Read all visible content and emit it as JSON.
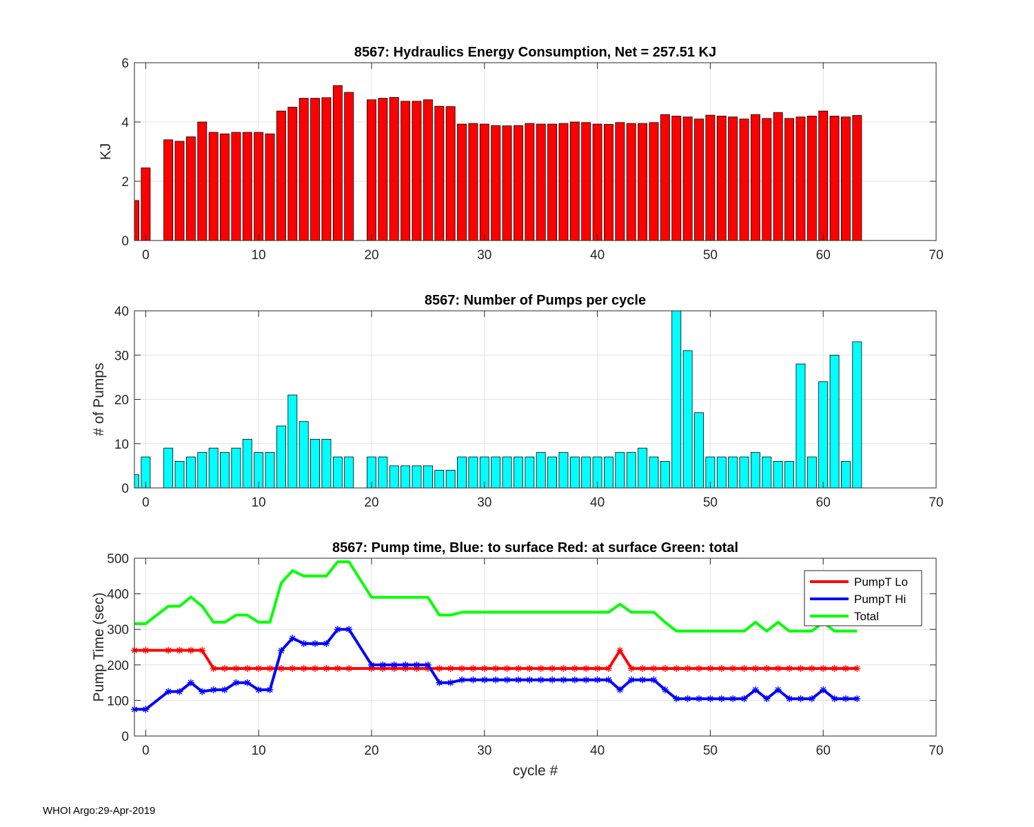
{
  "footer": "WHOI Argo:29-Apr-2019",
  "chart_data": [
    {
      "type": "bar",
      "title": "8567: Hydraulics Energy Consumption,  Net = 257.51 KJ",
      "xlabel": "",
      "ylabel": "KJ",
      "xlim": [
        -1,
        70
      ],
      "ylim": [
        0,
        6
      ],
      "xticks": [
        0,
        10,
        20,
        30,
        40,
        50,
        60,
        70
      ],
      "yticks": [
        0,
        2,
        4,
        6
      ],
      "grid": true,
      "bar_color": "#ff0000",
      "x": [
        -1,
        0,
        2,
        3,
        4,
        5,
        6,
        7,
        8,
        9,
        10,
        11,
        12,
        13,
        14,
        15,
        16,
        17,
        18,
        20,
        21,
        22,
        23,
        24,
        25,
        26,
        27,
        28,
        29,
        30,
        31,
        32,
        33,
        34,
        35,
        36,
        37,
        38,
        39,
        40,
        41,
        42,
        43,
        44,
        45,
        46,
        47,
        48,
        49,
        50,
        51,
        52,
        53,
        54,
        55,
        56,
        57,
        58,
        59,
        60,
        61,
        62,
        63
      ],
      "values": [
        1.35,
        2.45,
        3.4,
        3.35,
        3.5,
        4.0,
        3.65,
        3.6,
        3.65,
        3.65,
        3.65,
        3.6,
        4.37,
        4.5,
        4.8,
        4.8,
        4.82,
        5.23,
        5.0,
        4.75,
        4.8,
        4.83,
        4.7,
        4.7,
        4.75,
        4.53,
        4.52,
        3.93,
        3.95,
        3.93,
        3.88,
        3.87,
        3.88,
        3.95,
        3.93,
        3.93,
        3.95,
        4.0,
        3.98,
        3.93,
        3.92,
        3.98,
        3.95,
        3.95,
        3.98,
        4.25,
        4.2,
        4.17,
        4.1,
        4.23,
        4.2,
        4.17,
        4.1,
        4.25,
        4.12,
        4.32,
        4.12,
        4.17,
        4.2,
        4.37,
        4.2,
        4.17,
        4.22
      ]
    },
    {
      "type": "bar",
      "title": "8567: Number of Pumps per cycle",
      "xlabel": "",
      "ylabel": "# of Pumps",
      "xlim": [
        -1,
        70
      ],
      "ylim": [
        0,
        40
      ],
      "xticks": [
        0,
        10,
        20,
        30,
        40,
        50,
        60,
        70
      ],
      "yticks": [
        0,
        10,
        20,
        30,
        40
      ],
      "grid": true,
      "bar_color": "#00ffff",
      "x": [
        -1,
        0,
        2,
        3,
        4,
        5,
        6,
        7,
        8,
        9,
        10,
        11,
        12,
        13,
        14,
        15,
        16,
        17,
        18,
        20,
        21,
        22,
        23,
        24,
        25,
        26,
        27,
        28,
        29,
        30,
        31,
        32,
        33,
        34,
        35,
        36,
        37,
        38,
        39,
        40,
        41,
        42,
        43,
        44,
        45,
        46,
        47,
        48,
        49,
        50,
        51,
        52,
        53,
        54,
        55,
        56,
        57,
        58,
        59,
        60,
        61,
        62,
        63
      ],
      "values": [
        3,
        7,
        9,
        6,
        7,
        8,
        9,
        8,
        9,
        11,
        8,
        8,
        14,
        21,
        15,
        11,
        11,
        7,
        7,
        7,
        7,
        5,
        5,
        5,
        5,
        4,
        4,
        7,
        7,
        7,
        7,
        7,
        7,
        7,
        8,
        7,
        8,
        7,
        7,
        7,
        7,
        8,
        8,
        9,
        7,
        6,
        40,
        31,
        17,
        7,
        7,
        7,
        7,
        8,
        7,
        6,
        6,
        28,
        7,
        24,
        30,
        6,
        33
      ]
    },
    {
      "type": "line",
      "title": "8567: Pump time,  Blue: to surface   Red: at surface  Green: total",
      "xlabel": "cycle #",
      "ylabel": "Pump Time (sec)",
      "xlim": [
        -1,
        70
      ],
      "ylim": [
        0,
        500
      ],
      "xticks": [
        0,
        10,
        20,
        30,
        40,
        50,
        60,
        70
      ],
      "yticks": [
        0,
        100,
        200,
        300,
        400,
        500
      ],
      "grid": true,
      "legend_position": "top-right",
      "x": [
        -1,
        0,
        2,
        3,
        4,
        5,
        6,
        7,
        8,
        9,
        10,
        11,
        12,
        13,
        14,
        15,
        16,
        17,
        18,
        20,
        21,
        22,
        23,
        24,
        25,
        26,
        27,
        28,
        29,
        30,
        31,
        32,
        33,
        34,
        35,
        36,
        37,
        38,
        39,
        40,
        41,
        42,
        43,
        44,
        45,
        46,
        47,
        48,
        49,
        50,
        51,
        52,
        53,
        54,
        55,
        56,
        57,
        58,
        59,
        60,
        61,
        62,
        63
      ],
      "series": [
        {
          "name": "PumpT Lo",
          "color": "#ff0000",
          "markers": true,
          "values": [
            241,
            241,
            241,
            241,
            241,
            241,
            190,
            190,
            190,
            190,
            190,
            190,
            190,
            190,
            190,
            190,
            190,
            190,
            190,
            190,
            190,
            190,
            190,
            190,
            190,
            190,
            190,
            190,
            190,
            190,
            190,
            190,
            190,
            190,
            190,
            190,
            190,
            190,
            190,
            190,
            190,
            241,
            190,
            190,
            190,
            190,
            190,
            190,
            190,
            190,
            190,
            190,
            190,
            190,
            190,
            190,
            190,
            190,
            190,
            190,
            190,
            190,
            190
          ]
        },
        {
          "name": "PumpT Hi",
          "color": "#0000ff",
          "markers": true,
          "values": [
            75,
            75,
            125,
            125,
            150,
            125,
            130,
            130,
            150,
            150,
            130,
            130,
            240,
            275,
            260,
            260,
            260,
            300,
            300,
            200,
            200,
            200,
            200,
            200,
            200,
            150,
            150,
            158,
            158,
            158,
            158,
            158,
            158,
            158,
            158,
            158,
            158,
            158,
            158,
            158,
            158,
            130,
            158,
            158,
            158,
            130,
            105,
            105,
            105,
            105,
            105,
            105,
            105,
            130,
            105,
            130,
            105,
            105,
            105,
            130,
            105,
            105,
            105
          ]
        },
        {
          "name": "Total",
          "color": "#00ff00",
          "markers": false,
          "values": [
            316,
            316,
            365,
            365,
            391,
            365,
            320,
            320,
            340,
            340,
            320,
            320,
            430,
            465,
            450,
            450,
            450,
            490,
            490,
            390,
            390,
            390,
            390,
            390,
            390,
            340,
            340,
            348,
            348,
            348,
            348,
            348,
            348,
            348,
            348,
            348,
            348,
            348,
            348,
            348,
            348,
            371,
            348,
            348,
            348,
            320,
            295,
            295,
            295,
            295,
            295,
            295,
            295,
            320,
            295,
            320,
            295,
            295,
            295,
            320,
            295,
            295,
            295
          ]
        }
      ]
    }
  ]
}
